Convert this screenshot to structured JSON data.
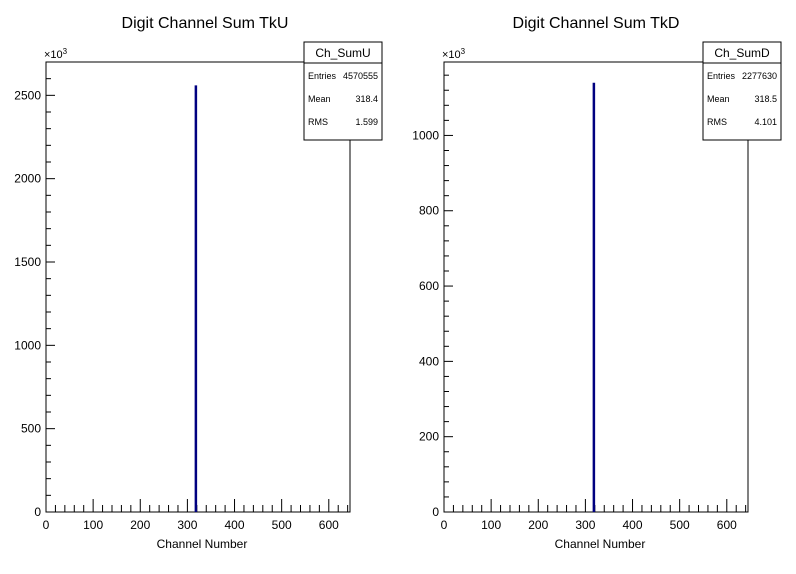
{
  "chart_data": [
    {
      "type": "bar",
      "title": "Digit Channel Sum TkU",
      "xlabel": "Channel Number",
      "ylabel": "",
      "xlim": [
        0,
        645
      ],
      "ylim": [
        0,
        2700000
      ],
      "exponent_label": "×10",
      "exponent_power": "3",
      "x_ticks": [
        0,
        100,
        200,
        300,
        400,
        500,
        600
      ],
      "x_tick_labels": [
        "0",
        "100",
        "200",
        "300",
        "400",
        "500",
        "600"
      ],
      "y_ticks": [
        0,
        500000,
        1000000,
        1500000,
        2000000,
        2500000
      ],
      "y_tick_labels": [
        "0",
        "500",
        "1000",
        "1500",
        "2000",
        "2500"
      ],
      "series": [
        {
          "bins": [
            {
              "x": 318,
              "value": 2560000
            }
          ],
          "color": "#000080"
        }
      ],
      "stats": {
        "name": "Ch_SumU",
        "rows": [
          {
            "label": "Entries",
            "value": "4570555"
          },
          {
            "label": "Mean",
            "value": "318.4"
          },
          {
            "label": "RMS",
            "value": "1.599"
          }
        ]
      }
    },
    {
      "type": "bar",
      "title": "Digit Channel Sum TkD",
      "xlabel": "Channel Number",
      "ylabel": "",
      "xlim": [
        0,
        645
      ],
      "ylim": [
        0,
        1195000
      ],
      "exponent_label": "×10",
      "exponent_power": "3",
      "x_ticks": [
        0,
        100,
        200,
        300,
        400,
        500,
        600
      ],
      "x_tick_labels": [
        "0",
        "100",
        "200",
        "300",
        "400",
        "500",
        "600"
      ],
      "y_ticks": [
        0,
        200000,
        400000,
        600000,
        800000,
        1000000
      ],
      "y_tick_labels": [
        "0",
        "200",
        "400",
        "600",
        "800",
        "1000"
      ],
      "series": [
        {
          "bins": [
            {
              "x": 318,
              "value": 1140000
            }
          ],
          "color": "#000080"
        }
      ],
      "stats": {
        "name": "Ch_SumD",
        "rows": [
          {
            "label": "Entries",
            "value": "2277630"
          },
          {
            "label": "Mean",
            "value": "318.5"
          },
          {
            "label": "RMS",
            "value": "4.101"
          }
        ]
      }
    }
  ]
}
